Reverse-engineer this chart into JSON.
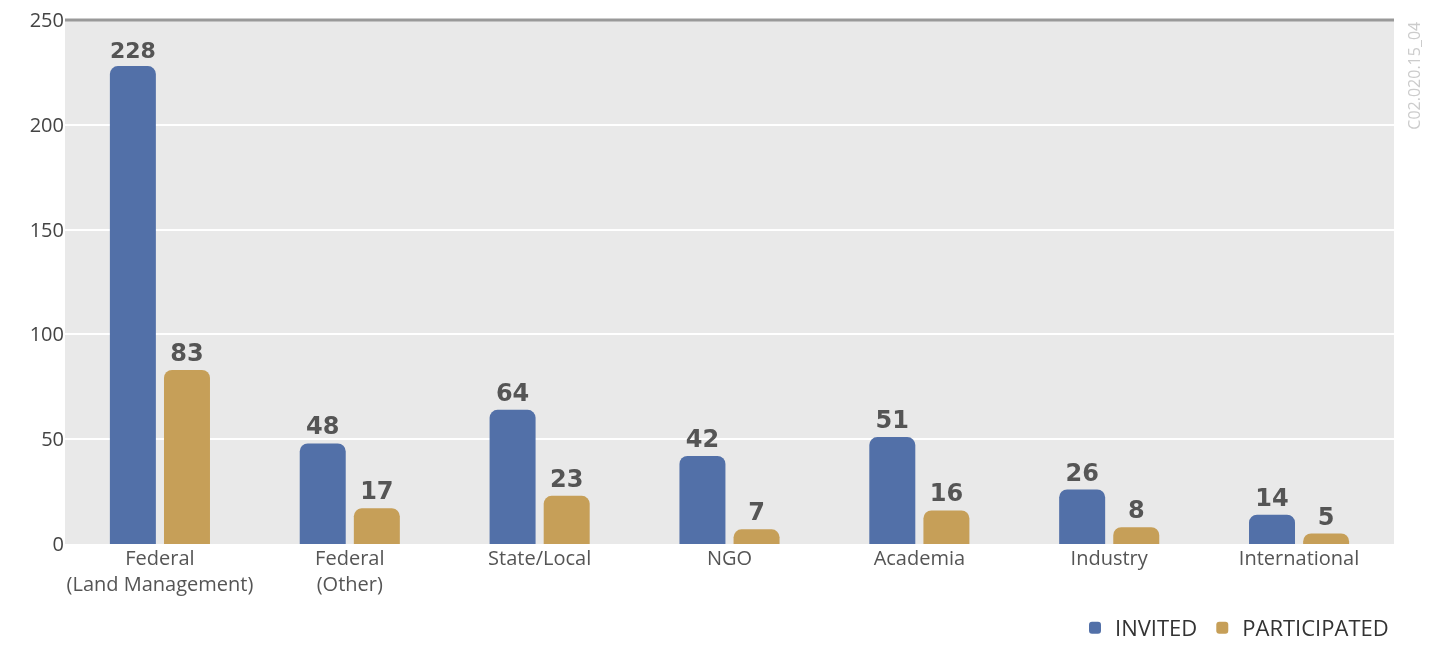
{
  "chart_data": {
    "type": "bar",
    "categories": [
      "Federal\n(Land Management)",
      "Federal\n(Other)",
      "State/Local",
      "NGO",
      "Academia",
      "Industry",
      "International"
    ],
    "series": [
      {
        "name": "INVITED",
        "color": "#5270a8",
        "values": [
          228,
          48,
          64,
          42,
          51,
          26,
          14
        ]
      },
      {
        "name": "PARTICIPATED",
        "color": "#c69f58",
        "values": [
          83,
          17,
          23,
          7,
          16,
          8,
          5
        ]
      }
    ],
    "ylim": [
      0,
      250
    ],
    "yticks": [
      0,
      50,
      100,
      150,
      200,
      250
    ],
    "grid": "y",
    "legend": "bottom right",
    "data_labels": true,
    "annotations": [
      "C02.020.15_04"
    ]
  }
}
